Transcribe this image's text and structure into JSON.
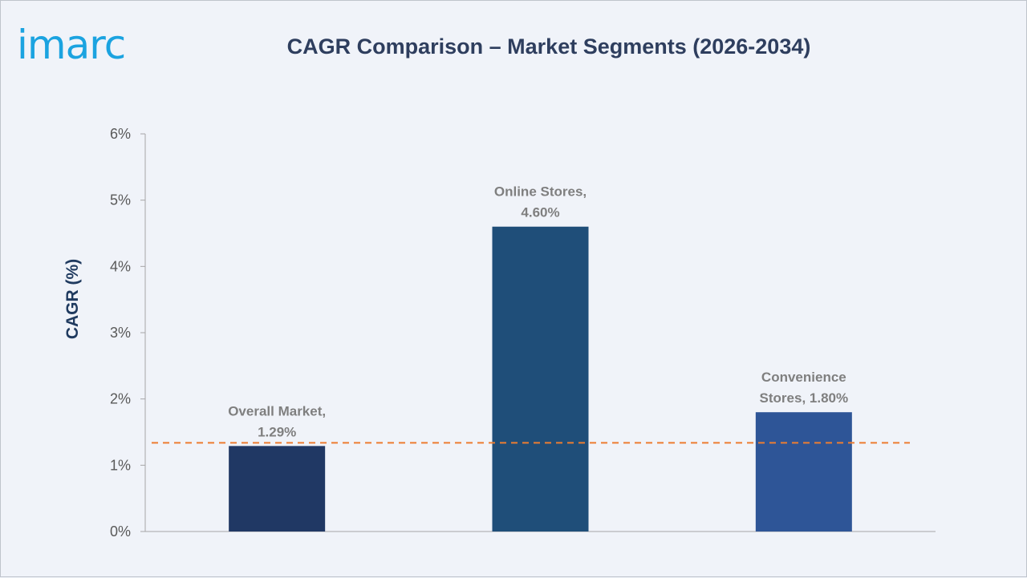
{
  "logo_text": "imarc",
  "chart_data": {
    "type": "bar",
    "title": "CAGR Comparison – Market Segments (2026-2034)",
    "xlabel": "",
    "ylabel": "CAGR (%)",
    "ylim": [
      0,
      6
    ],
    "yticks": [
      "0%",
      "1%",
      "2%",
      "3%",
      "4%",
      "5%",
      "6%"
    ],
    "categories": [
      "Overall Market",
      "Online Stores",
      "Convenience Stores"
    ],
    "values": [
      1.29,
      4.6,
      1.8
    ],
    "data_labels": [
      [
        "Overall Market,",
        "1.29%"
      ],
      [
        "Online Stores,",
        "4.60%"
      ],
      [
        "Convenience",
        "Stores, 1.80%"
      ]
    ],
    "bar_colors": [
      "#203864",
      "#1f4e79",
      "#2e5597"
    ],
    "reference_line": {
      "value": 1.29,
      "style": "dashed",
      "color": "#ed7d31"
    },
    "grid": false,
    "legend": "none"
  }
}
